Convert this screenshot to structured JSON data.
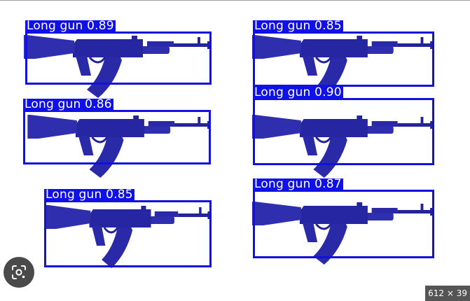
{
  "detections": [
    {
      "label": "Long gun",
      "score": "0.89"
    },
    {
      "label": "Long gun",
      "score": "0.85"
    },
    {
      "label": "Long gun",
      "score": "0.86"
    },
    {
      "label": "Long gun",
      "score": "0.90"
    },
    {
      "label": "Long gun",
      "score": "0.85"
    },
    {
      "label": "Long gun",
      "score": "0.87"
    }
  ],
  "colors": {
    "box": "#1212e0",
    "label_bg": "#1010e8",
    "rifle_body": "#2a2aa8",
    "rifle_wood": "#5a3c7a"
  },
  "overlay": {
    "lens_icon": "lens-search-icon",
    "dimensions_badge": "612 × 39"
  }
}
